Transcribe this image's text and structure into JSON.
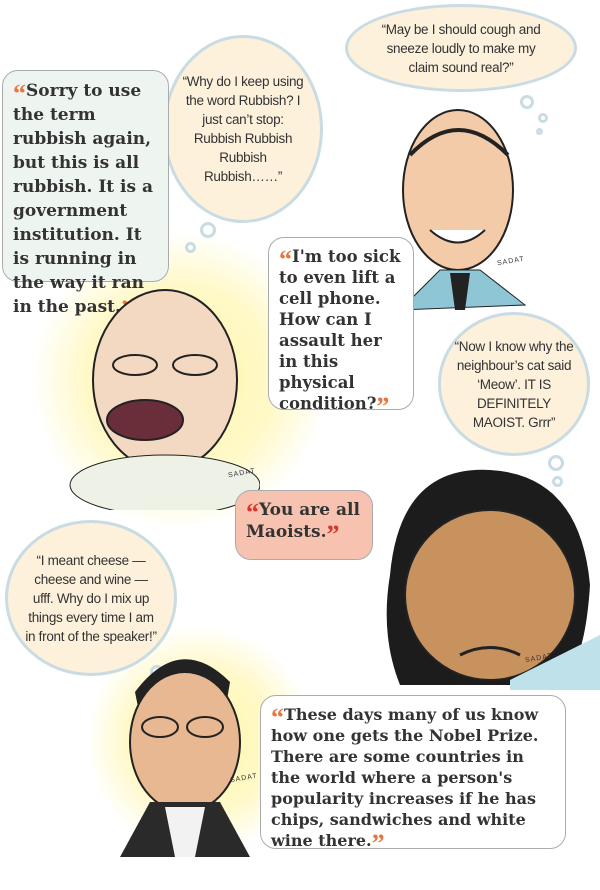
{
  "thoughts": [
    {
      "text": "“May be I should cough and sneeze loudly to make my claim sound real?”"
    },
    {
      "text": "“Why do I keep using the word Rubbish? I just can’t stop: Rubbish Rubbish Rubbish Rubbish……”"
    },
    {
      "text": "“Now I know why the neighbour’s cat said ‘Meow’. IT IS DEFINITELY MAOIST. Grrr”"
    },
    {
      "text": "“I meant cheese — cheese and wine — ufff. Why do I mix up things every time I am in front of the speaker!”"
    }
  ],
  "speeches": [
    {
      "text": "Sorry to use the term rubbish again, but this is all rubbish. It is a government institution. It is running in the way it ran in the past."
    },
    {
      "text": "I'm too sick to even lift a cell phone. How can I assault her in this physical condition?"
    },
    {
      "text": "You are all Maoists."
    },
    {
      "text": "These days many of us know how one gets the Nobel Prize. There are some countries in the world where a person's popularity increases if he has chips, sandwiches and white wine there."
    }
  ],
  "quote_marks": {
    "open": "“",
    "close": "”"
  },
  "signature": "SADAT",
  "colors": {
    "quote_accent": "#e8763c",
    "red_bubble": "#f7c3b0",
    "thought_fill": "#fdf1dc",
    "thought_border": "#c9dbe3",
    "green_bubble": "#eef4f0"
  }
}
